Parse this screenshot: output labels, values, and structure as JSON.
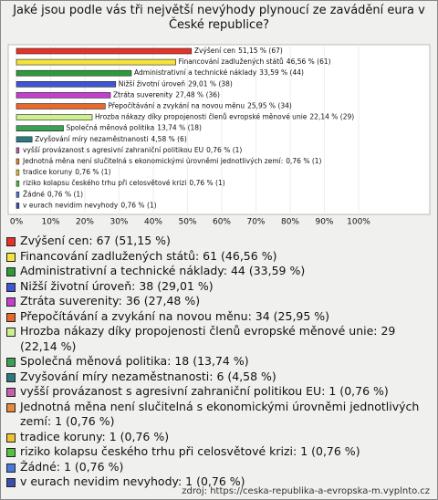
{
  "chart_data": {
    "type": "bar",
    "orientation": "horizontal",
    "title": "Jaké jsou podle vás tři největší nevýhody plynoucí ze zavádění eura v České republice?",
    "categories": [
      "Zvýšení cen",
      "Financování zadlužených států",
      "Administrativní a technické náklady",
      "Nižší životní úroveň",
      "Ztráta suverenity",
      "Přepočítávání a zvykání na novou měnu",
      "Hrozba nákazy díky propojenosti členů evropské měnové unie",
      "Společná měnová politika",
      "Zvyšování míry nezaměstnanosti",
      "vyšší provázanost s agresivní zahraniční politikou EU",
      "Jednotná měna není slučitelná s ekonomickými úrovněmi jednotlivých zemí:",
      "tradice koruny",
      "riziko kolapsu českého trhu při celosvětové krizi",
      "Žádné",
      "v eurach nevidim nevyhody"
    ],
    "values": [
      51.15,
      46.56,
      33.59,
      29.01,
      27.48,
      25.95,
      22.14,
      13.74,
      4.58,
      0.76,
      0.76,
      0.76,
      0.76,
      0.76,
      0.76
    ],
    "value_labels": [
      "51,15 % (67)",
      "46,56 % (61)",
      "33,59 % (44)",
      "29,01 % (38)",
      "27,48 % (36)",
      "25,95 % (34)",
      "22,14 % (29)",
      "13,74 % (18)",
      "4,58 % (6)",
      "0,76 % (1)",
      "0,76 % (1)",
      "0,76 % (1)",
      "0,76 % (1)",
      "0,76 % (1)",
      "0,76 % (1)"
    ],
    "legend_labels": [
      "Zvýšení cen: 67 (51,15 %)",
      "Financování zadlužených států: 61 (46,56 %)",
      "Administrativní a technické náklady: 44 (33,59 %)",
      "Nižší životní úroveň: 38 (29,01 %)",
      "Ztráta suverenity: 36 (27,48 %)",
      "Přepočítávání a zvykání na novou měnu: 34 (25,95 %)",
      "Hrozba nákazy díky propojenosti členů evropské měnové unie: 29 (22,14 %)",
      "Společná měnová politika: 18 (13,74 %)",
      "Zvyšování míry nezaměstnanosti: 6 (4,58 %)",
      "vyšší provázanost s agresivní zahraniční politikou EU: 1 (0,76 %)",
      "Jednotná měna není slučitelná s ekonomickými úrovněmi jednotlivých zemí: 1 (0,76 %)",
      "tradice koruny: 1 (0,76 %)",
      "riziko kolapsu českého trhu při celosvětové krizi: 1 (0,76 %)",
      "Žádné: 1 (0,76 %)",
      "v eurach nevidim nevyhody: 1 (0,76 %)"
    ],
    "colors": [
      "#e5332a",
      "#f3e33a",
      "#2e9a3c",
      "#3f56d4",
      "#c33fcf",
      "#e8682c",
      "#cdf08e",
      "#3c9f56",
      "#2b7a80",
      "#c25fae",
      "#e68a3a",
      "#f0c232",
      "#55c042",
      "#4b78e0",
      "#3a4fae"
    ],
    "xlim": [
      0,
      100
    ],
    "xticks": [
      {
        "value": 0,
        "label": "0%"
      },
      {
        "value": 10,
        "label": "10%"
      },
      {
        "value": 20,
        "label": "20%"
      },
      {
        "value": 30,
        "label": "30%"
      },
      {
        "value": 40,
        "label": "40%"
      },
      {
        "value": 50,
        "label": "50%"
      },
      {
        "value": 60,
        "label": "60%"
      },
      {
        "value": 70,
        "label": "70%"
      },
      {
        "value": 80,
        "label": "80%"
      },
      {
        "value": 90,
        "label": "90%"
      },
      {
        "value": 100,
        "label": "100%"
      }
    ],
    "source": "zdroj: https://ceska-republika-a-evropska-m.vyplnto.cz"
  }
}
